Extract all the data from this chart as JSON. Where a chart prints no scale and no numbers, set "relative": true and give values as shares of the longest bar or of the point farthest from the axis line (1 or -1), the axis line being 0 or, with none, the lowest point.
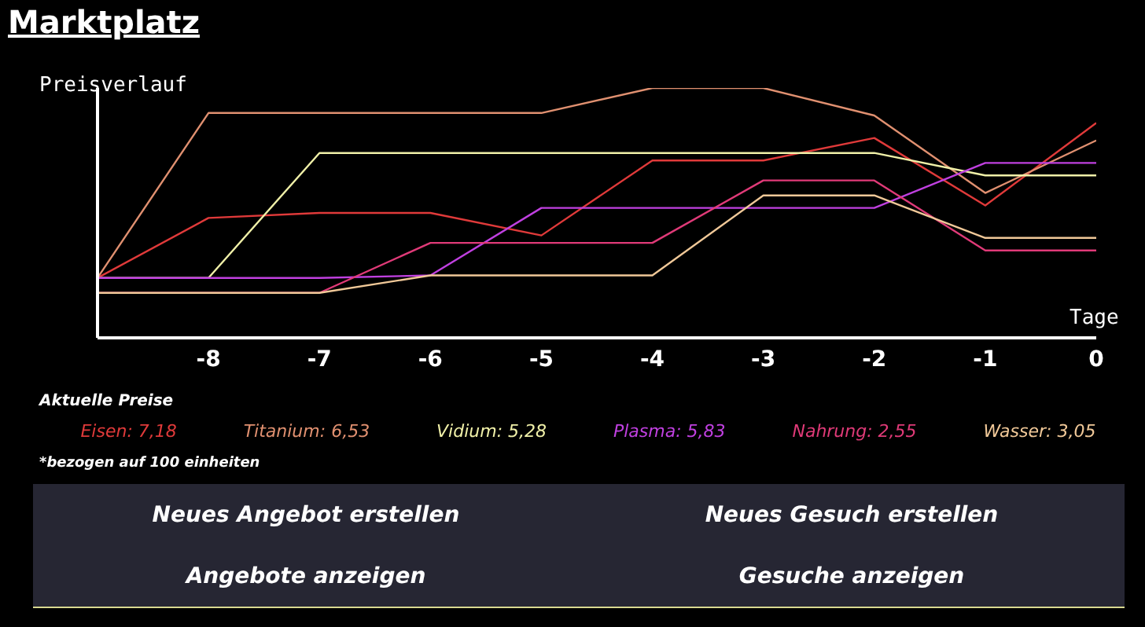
{
  "chart_data": {
    "type": "line",
    "title": "Marktplatz",
    "ylabel": "Preisverlauf",
    "xlabel": "Tage",
    "relative": true,
    "marker": "none",
    "legend": "bottom",
    "legend_title": "Aktuelle Preise",
    "x": [
      -9,
      -8,
      -7,
      -6,
      -5,
      -4,
      -3,
      -2,
      -1,
      0
    ],
    "xlim": [
      -9,
      0
    ],
    "xticks": [
      -8,
      -7,
      -6,
      -5,
      -4,
      -3,
      -2,
      -1,
      0
    ],
    "series": [
      {
        "name": "Eisen: 7,18",
        "color": "#e03a3a",
        "values": [
          0.24,
          0.48,
          0.5,
          0.5,
          0.41,
          0.71,
          0.71,
          0.8,
          0.53,
          0.86
        ]
      },
      {
        "name": "Titanium: 6,53",
        "color": "#e09070",
        "values": [
          0.24,
          0.9,
          0.9,
          0.9,
          0.9,
          1.0,
          1.0,
          0.89,
          0.58,
          0.79
        ]
      },
      {
        "name": "Vidium: 5,28",
        "color": "#f0f0a8",
        "values": [
          0.24,
          0.24,
          0.74,
          0.74,
          0.74,
          0.74,
          0.74,
          0.74,
          0.65,
          0.65
        ]
      },
      {
        "name": "Plasma: 5,83",
        "color": "#c040e0",
        "values": [
          0.24,
          0.24,
          0.24,
          0.25,
          0.52,
          0.52,
          0.52,
          0.52,
          0.7,
          0.7
        ]
      },
      {
        "name": "Nahrung: 2,55",
        "color": "#e03a78",
        "values": [
          0.18,
          0.18,
          0.18,
          0.38,
          0.38,
          0.38,
          0.63,
          0.63,
          0.35,
          0.35
        ]
      },
      {
        "name": "Wasser: 3,05",
        "color": "#f0c898",
        "values": [
          0.18,
          0.18,
          0.18,
          0.25,
          0.25,
          0.25,
          0.57,
          0.57,
          0.4,
          0.4
        ]
      }
    ],
    "annotations": [
      "*bezogen auf 100 einheiten",
      "Neues Angebot erstellen",
      "Neues Gesuch erstellen",
      "Angebote anzeigen",
      "Gesuche anzeigen"
    ]
  }
}
